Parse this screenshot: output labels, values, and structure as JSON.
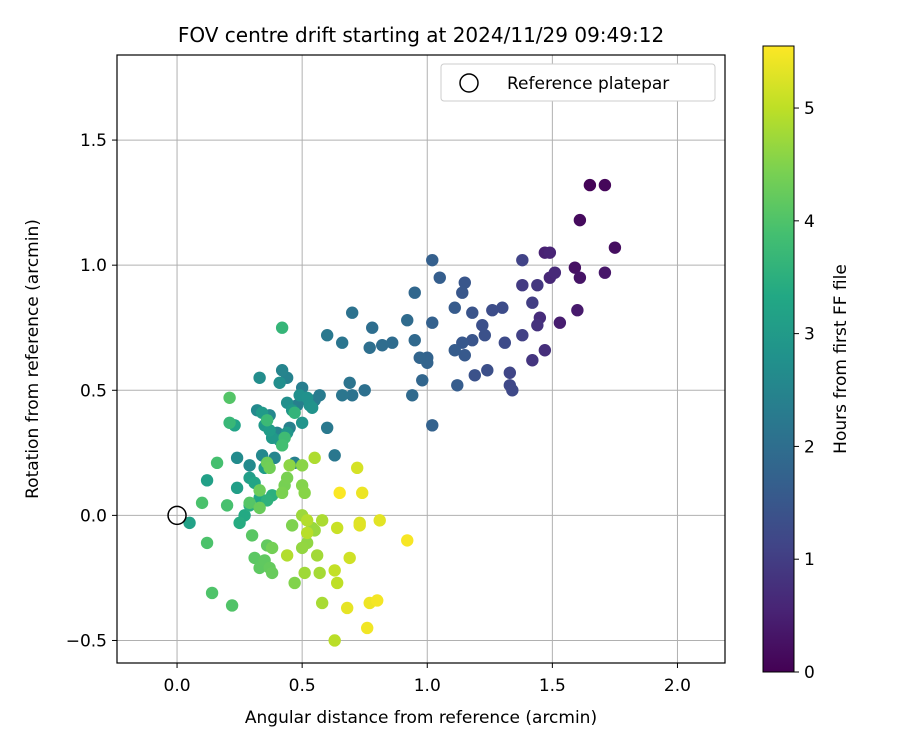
{
  "chart_data": {
    "type": "scatter",
    "title": "FOV centre drift starting at 2024/11/29 09:49:12",
    "xlabel": "Angular distance from reference (arcmin)",
    "ylabel": "Rotation from reference (arcmin)",
    "xlim": [
      -0.24,
      2.19
    ],
    "ylim": [
      -0.59,
      1.84
    ],
    "xticks": [
      0.0,
      0.5,
      1.0,
      1.5,
      2.0
    ],
    "xtick_labels": [
      "0.0",
      "0.5",
      "1.0",
      "1.5",
      "2.0"
    ],
    "yticks": [
      -0.5,
      0.0,
      0.5,
      1.0,
      1.5
    ],
    "ytick_labels": [
      "−0.5",
      "0.0",
      "0.5",
      "1.0",
      "1.5"
    ],
    "grid": true,
    "legend": {
      "position": "top-right",
      "entries": [
        "Reference platepar"
      ]
    },
    "reference_point": {
      "x": 0.0,
      "y": 0.0
    },
    "colorbar": {
      "label": "Hours from first FF file",
      "range": [
        0,
        5.55
      ],
      "ticks": [
        0,
        1,
        2,
        3,
        4,
        5
      ],
      "tick_labels": [
        "0",
        "1",
        "2",
        "3",
        "4",
        "5"
      ],
      "colormap": "viridis"
    },
    "points": [
      {
        "x": 1.65,
        "y": 1.32,
        "h": 0.05
      },
      {
        "x": 1.71,
        "y": 1.32,
        "h": 0.1
      },
      {
        "x": 1.61,
        "y": 1.18,
        "h": 0.15
      },
      {
        "x": 1.75,
        "y": 1.07,
        "h": 0.2
      },
      {
        "x": 1.59,
        "y": 0.99,
        "h": 0.25
      },
      {
        "x": 1.61,
        "y": 0.95,
        "h": 0.3
      },
      {
        "x": 1.71,
        "y": 0.97,
        "h": 0.35
      },
      {
        "x": 1.6,
        "y": 0.82,
        "h": 0.4
      },
      {
        "x": 1.53,
        "y": 0.77,
        "h": 0.45
      },
      {
        "x": 1.47,
        "y": 1.05,
        "h": 0.5
      },
      {
        "x": 1.49,
        "y": 1.05,
        "h": 0.55
      },
      {
        "x": 1.49,
        "y": 0.95,
        "h": 0.6
      },
      {
        "x": 1.51,
        "y": 0.97,
        "h": 0.65
      },
      {
        "x": 1.45,
        "y": 0.79,
        "h": 0.7
      },
      {
        "x": 1.47,
        "y": 0.66,
        "h": 0.75
      },
      {
        "x": 1.44,
        "y": 0.76,
        "h": 0.8
      },
      {
        "x": 1.42,
        "y": 0.62,
        "h": 0.85
      },
      {
        "x": 1.44,
        "y": 0.92,
        "h": 0.9
      },
      {
        "x": 1.38,
        "y": 0.92,
        "h": 0.95
      },
      {
        "x": 1.42,
        "y": 0.85,
        "h": 1.0
      },
      {
        "x": 1.38,
        "y": 0.72,
        "h": 1.05
      },
      {
        "x": 1.38,
        "y": 1.02,
        "h": 1.1
      },
      {
        "x": 1.33,
        "y": 0.57,
        "h": 1.15
      },
      {
        "x": 1.33,
        "y": 0.52,
        "h": 1.2
      },
      {
        "x": 1.34,
        "y": 0.5,
        "h": 1.22
      },
      {
        "x": 1.31,
        "y": 0.69,
        "h": 1.25
      },
      {
        "x": 1.3,
        "y": 0.83,
        "h": 1.28
      },
      {
        "x": 1.26,
        "y": 0.82,
        "h": 1.3
      },
      {
        "x": 1.24,
        "y": 0.58,
        "h": 1.33
      },
      {
        "x": 1.22,
        "y": 0.76,
        "h": 1.35
      },
      {
        "x": 1.23,
        "y": 0.72,
        "h": 1.38
      },
      {
        "x": 1.19,
        "y": 0.56,
        "h": 1.4
      },
      {
        "x": 1.18,
        "y": 0.81,
        "h": 1.43
      },
      {
        "x": 1.18,
        "y": 0.7,
        "h": 1.45
      },
      {
        "x": 1.15,
        "y": 0.93,
        "h": 1.48
      },
      {
        "x": 1.14,
        "y": 0.89,
        "h": 1.5
      },
      {
        "x": 1.14,
        "y": 0.69,
        "h": 1.53
      },
      {
        "x": 1.15,
        "y": 0.64,
        "h": 1.55
      },
      {
        "x": 1.11,
        "y": 0.83,
        "h": 1.58
      },
      {
        "x": 1.11,
        "y": 0.66,
        "h": 1.6
      },
      {
        "x": 1.12,
        "y": 0.52,
        "h": 1.63
      },
      {
        "x": 1.05,
        "y": 0.95,
        "h": 1.65
      },
      {
        "x": 1.02,
        "y": 1.02,
        "h": 1.68
      },
      {
        "x": 1.02,
        "y": 0.77,
        "h": 1.7
      },
      {
        "x": 1.02,
        "y": 0.36,
        "h": 1.73
      },
      {
        "x": 1.0,
        "y": 0.63,
        "h": 1.75
      },
      {
        "x": 1.0,
        "y": 0.61,
        "h": 1.78
      },
      {
        "x": 0.97,
        "y": 0.63,
        "h": 1.8
      },
      {
        "x": 0.98,
        "y": 0.54,
        "h": 1.83
      },
      {
        "x": 0.95,
        "y": 0.89,
        "h": 1.85
      },
      {
        "x": 0.95,
        "y": 0.7,
        "h": 1.88
      },
      {
        "x": 0.94,
        "y": 0.48,
        "h": 1.9
      },
      {
        "x": 0.92,
        "y": 0.78,
        "h": 1.93
      },
      {
        "x": 0.86,
        "y": 0.69,
        "h": 1.95
      },
      {
        "x": 0.82,
        "y": 0.68,
        "h": 1.98
      },
      {
        "x": 0.78,
        "y": 0.75,
        "h": 2.0
      },
      {
        "x": 0.77,
        "y": 0.67,
        "h": 2.03
      },
      {
        "x": 0.75,
        "y": 0.5,
        "h": 2.05
      },
      {
        "x": 0.7,
        "y": 0.81,
        "h": 2.08
      },
      {
        "x": 0.7,
        "y": 0.48,
        "h": 2.1
      },
      {
        "x": 0.69,
        "y": 0.53,
        "h": 2.13
      },
      {
        "x": 0.66,
        "y": 0.69,
        "h": 2.15
      },
      {
        "x": 0.66,
        "y": 0.48,
        "h": 2.18
      },
      {
        "x": 0.63,
        "y": 0.24,
        "h": 2.2
      },
      {
        "x": 0.6,
        "y": 0.72,
        "h": 2.23
      },
      {
        "x": 0.6,
        "y": 0.35,
        "h": 2.25
      },
      {
        "x": 0.57,
        "y": 0.48,
        "h": 2.28
      },
      {
        "x": 0.55,
        "y": 0.46,
        "h": 2.3
      },
      {
        "x": 0.52,
        "y": 0.46,
        "h": 2.33
      },
      {
        "x": 0.5,
        "y": 0.51,
        "h": 2.35
      },
      {
        "x": 0.48,
        "y": 0.44,
        "h": 2.38
      },
      {
        "x": 0.47,
        "y": 0.21,
        "h": 2.4
      },
      {
        "x": 0.45,
        "y": 0.35,
        "h": 2.43
      },
      {
        "x": 0.44,
        "y": 0.55,
        "h": 2.45
      },
      {
        "x": 0.42,
        "y": 0.58,
        "h": 2.48
      },
      {
        "x": 0.4,
        "y": 0.33,
        "h": 2.5
      },
      {
        "x": 0.39,
        "y": 0.23,
        "h": 2.53
      },
      {
        "x": 0.37,
        "y": 0.4,
        "h": 2.55
      },
      {
        "x": 0.34,
        "y": 0.24,
        "h": 2.58
      },
      {
        "x": 0.32,
        "y": 0.42,
        "h": 2.6
      },
      {
        "x": 0.29,
        "y": 0.2,
        "h": 2.63
      },
      {
        "x": 0.24,
        "y": 0.23,
        "h": 2.65
      },
      {
        "x": 0.33,
        "y": 0.55,
        "h": 2.68
      },
      {
        "x": 0.41,
        "y": 0.53,
        "h": 2.7
      },
      {
        "x": 0.44,
        "y": 0.45,
        "h": 2.73
      },
      {
        "x": 0.49,
        "y": 0.48,
        "h": 2.75
      },
      {
        "x": 0.52,
        "y": 0.47,
        "h": 2.78
      },
      {
        "x": 0.53,
        "y": 0.44,
        "h": 2.8
      },
      {
        "x": 0.54,
        "y": 0.43,
        "h": 2.83
      },
      {
        "x": 0.5,
        "y": 0.37,
        "h": 2.85
      },
      {
        "x": 0.46,
        "y": 0.42,
        "h": 2.88
      },
      {
        "x": 0.44,
        "y": 0.33,
        "h": 2.9
      },
      {
        "x": 0.41,
        "y": 0.3,
        "h": 2.93
      },
      {
        "x": 0.38,
        "y": 0.31,
        "h": 2.95
      },
      {
        "x": 0.35,
        "y": 0.36,
        "h": 2.98
      },
      {
        "x": 0.34,
        "y": 0.41,
        "h": 3.0
      },
      {
        "x": 0.37,
        "y": 0.34,
        "h": 3.03
      },
      {
        "x": 0.35,
        "y": 0.19,
        "h": 3.05
      },
      {
        "x": 0.29,
        "y": 0.15,
        "h": 3.08
      },
      {
        "x": 0.24,
        "y": 0.11,
        "h": 3.1
      },
      {
        "x": 0.12,
        "y": 0.14,
        "h": 3.13
      },
      {
        "x": 0.05,
        "y": -0.03,
        "h": 3.15
      },
      {
        "x": 0.23,
        "y": 0.36,
        "h": 3.2
      },
      {
        "x": 0.31,
        "y": 0.13,
        "h": 3.25
      },
      {
        "x": 0.33,
        "y": 0.07,
        "h": 3.3
      },
      {
        "x": 0.27,
        "y": 0.0,
        "h": 3.35
      },
      {
        "x": 0.25,
        "y": -0.03,
        "h": 3.4
      },
      {
        "x": 0.29,
        "y": 0.04,
        "h": 3.45
      },
      {
        "x": 0.38,
        "y": 0.08,
        "h": 3.5
      },
      {
        "x": 0.36,
        "y": 0.06,
        "h": 3.55
      },
      {
        "x": 0.47,
        "y": 0.41,
        "h": 3.6
      },
      {
        "x": 0.42,
        "y": 0.75,
        "h": 3.65
      },
      {
        "x": 0.21,
        "y": 0.37,
        "h": 3.7
      },
      {
        "x": 0.36,
        "y": 0.38,
        "h": 3.75
      },
      {
        "x": 0.43,
        "y": 0.31,
        "h": 3.8
      },
      {
        "x": 0.42,
        "y": 0.28,
        "h": 3.85
      },
      {
        "x": 0.16,
        "y": 0.21,
        "h": 3.9
      },
      {
        "x": 0.2,
        "y": 0.04,
        "h": 3.92
      },
      {
        "x": 0.1,
        "y": 0.05,
        "h": 3.95
      },
      {
        "x": 0.12,
        "y": -0.11,
        "h": 3.97
      },
      {
        "x": 0.14,
        "y": -0.31,
        "h": 4.0
      },
      {
        "x": 0.22,
        "y": -0.36,
        "h": 4.02
      },
      {
        "x": 0.21,
        "y": 0.47,
        "h": 4.05
      },
      {
        "x": 0.29,
        "y": 0.05,
        "h": 4.07
      },
      {
        "x": 0.3,
        "y": -0.08,
        "h": 4.1
      },
      {
        "x": 0.31,
        "y": -0.17,
        "h": 4.12
      },
      {
        "x": 0.33,
        "y": -0.21,
        "h": 4.15
      },
      {
        "x": 0.35,
        "y": -0.18,
        "h": 4.17
      },
      {
        "x": 0.36,
        "y": -0.12,
        "h": 4.2
      },
      {
        "x": 0.37,
        "y": -0.21,
        "h": 4.22
      },
      {
        "x": 0.38,
        "y": -0.23,
        "h": 4.25
      },
      {
        "x": 0.33,
        "y": 0.03,
        "h": 4.27
      },
      {
        "x": 0.33,
        "y": 0.1,
        "h": 4.3
      },
      {
        "x": 0.36,
        "y": 0.21,
        "h": 4.32
      },
      {
        "x": 0.37,
        "y": 0.19,
        "h": 4.35
      },
      {
        "x": 0.38,
        "y": -0.13,
        "h": 4.37
      },
      {
        "x": 0.43,
        "y": 0.12,
        "h": 4.4
      },
      {
        "x": 0.44,
        "y": 0.15,
        "h": 4.42
      },
      {
        "x": 0.42,
        "y": 0.09,
        "h": 4.45
      },
      {
        "x": 0.46,
        "y": -0.04,
        "h": 4.47
      },
      {
        "x": 0.47,
        "y": -0.27,
        "h": 4.5
      },
      {
        "x": 0.5,
        "y": 0.12,
        "h": 4.52
      },
      {
        "x": 0.51,
        "y": 0.09,
        "h": 4.55
      },
      {
        "x": 0.5,
        "y": 0.2,
        "h": 4.57
      },
      {
        "x": 0.45,
        "y": 0.2,
        "h": 4.6
      },
      {
        "x": 0.52,
        "y": -0.11,
        "h": 4.62
      },
      {
        "x": 0.5,
        "y": -0.13,
        "h": 4.65
      },
      {
        "x": 0.54,
        "y": -0.05,
        "h": 4.67
      },
      {
        "x": 0.55,
        "y": -0.06,
        "h": 4.7
      },
      {
        "x": 0.5,
        "y": 0.0,
        "h": 4.72
      },
      {
        "x": 0.51,
        "y": -0.23,
        "h": 4.75
      },
      {
        "x": 0.56,
        "y": -0.16,
        "h": 4.77
      },
      {
        "x": 0.57,
        "y": -0.23,
        "h": 4.8
      },
      {
        "x": 0.58,
        "y": -0.35,
        "h": 4.82
      },
      {
        "x": 0.58,
        "y": -0.02,
        "h": 4.85
      },
      {
        "x": 0.55,
        "y": 0.23,
        "h": 4.87
      },
      {
        "x": 0.44,
        "y": -0.16,
        "h": 4.9
      },
      {
        "x": 0.52,
        "y": -0.02,
        "h": 4.92
      },
      {
        "x": 0.52,
        "y": -0.07,
        "h": 4.95
      },
      {
        "x": 0.63,
        "y": -0.5,
        "h": 4.97
      },
      {
        "x": 0.64,
        "y": -0.27,
        "h": 5.0
      },
      {
        "x": 0.63,
        "y": -0.22,
        "h": 5.05
      },
      {
        "x": 0.64,
        "y": -0.05,
        "h": 5.1
      },
      {
        "x": 0.69,
        "y": -0.17,
        "h": 5.15
      },
      {
        "x": 0.72,
        "y": 0.19,
        "h": 5.2
      },
      {
        "x": 0.73,
        "y": -0.03,
        "h": 5.25
      },
      {
        "x": 0.73,
        "y": -0.04,
        "h": 5.3
      },
      {
        "x": 0.81,
        "y": -0.02,
        "h": 5.32
      },
      {
        "x": 0.68,
        "y": -0.37,
        "h": 5.35
      },
      {
        "x": 0.74,
        "y": 0.09,
        "h": 5.4
      },
      {
        "x": 0.77,
        "y": -0.35,
        "h": 5.42
      },
      {
        "x": 0.76,
        "y": -0.45,
        "h": 5.45
      },
      {
        "x": 0.8,
        "y": -0.34,
        "h": 5.47
      },
      {
        "x": 0.92,
        "y": -0.1,
        "h": 5.5
      },
      {
        "x": 0.65,
        "y": 0.09,
        "h": 5.52
      }
    ]
  }
}
